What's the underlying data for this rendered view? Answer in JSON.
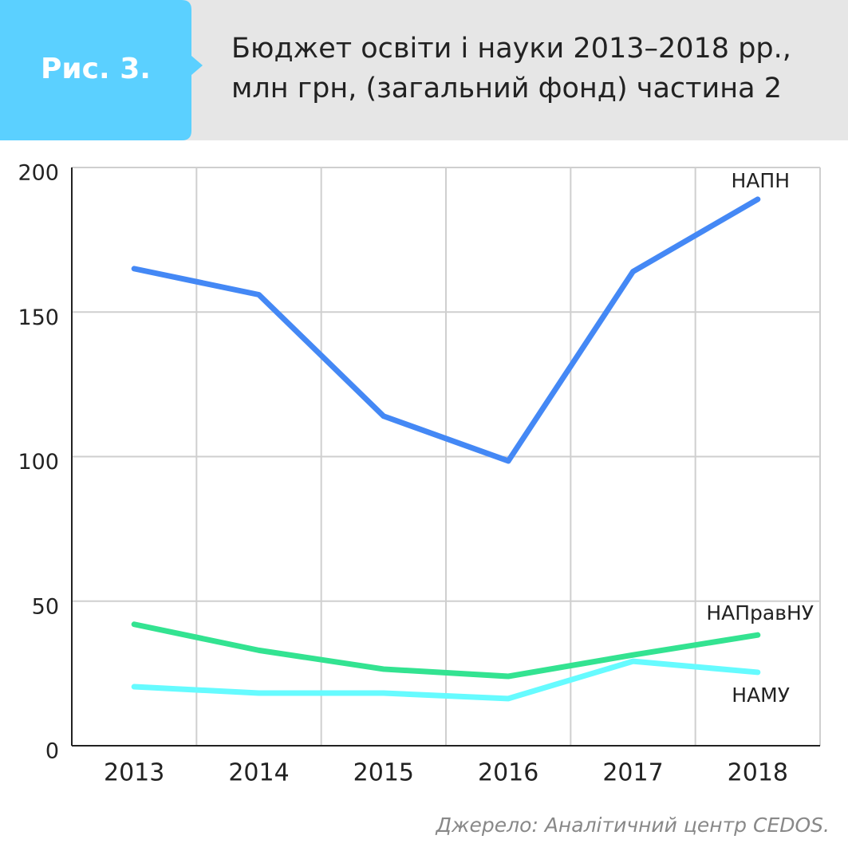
{
  "figure_label": "Рис. 3.",
  "chart_data": {
    "type": "line",
    "title": [
      "Бюджет освіти і науки 2013–2018 рр.,",
      "млн грн, (загальний фонд) частина 2"
    ],
    "categories": [
      "2013",
      "2014",
      "2015",
      "2016",
      "2017",
      "2018"
    ],
    "series": [
      {
        "name": "НАПН",
        "color": "#4488f5",
        "values": [
          165,
          156,
          114,
          98.5,
          164,
          189
        ]
      },
      {
        "name": "НАПравНУ",
        "color": "#33e391",
        "values": [
          42,
          33,
          26.5,
          24,
          31.4,
          38.3
        ]
      },
      {
        "name": "НАМУ",
        "color": "#66fbff",
        "values": [
          20.4,
          18.2,
          18.2,
          16.3,
          29.2,
          25.4
        ]
      }
    ],
    "ylim": [
      0,
      200
    ],
    "yticks": [
      0,
      50,
      100,
      150,
      200
    ],
    "grid": true,
    "source": "Джерело: Аналітичний центр CEDOS."
  }
}
